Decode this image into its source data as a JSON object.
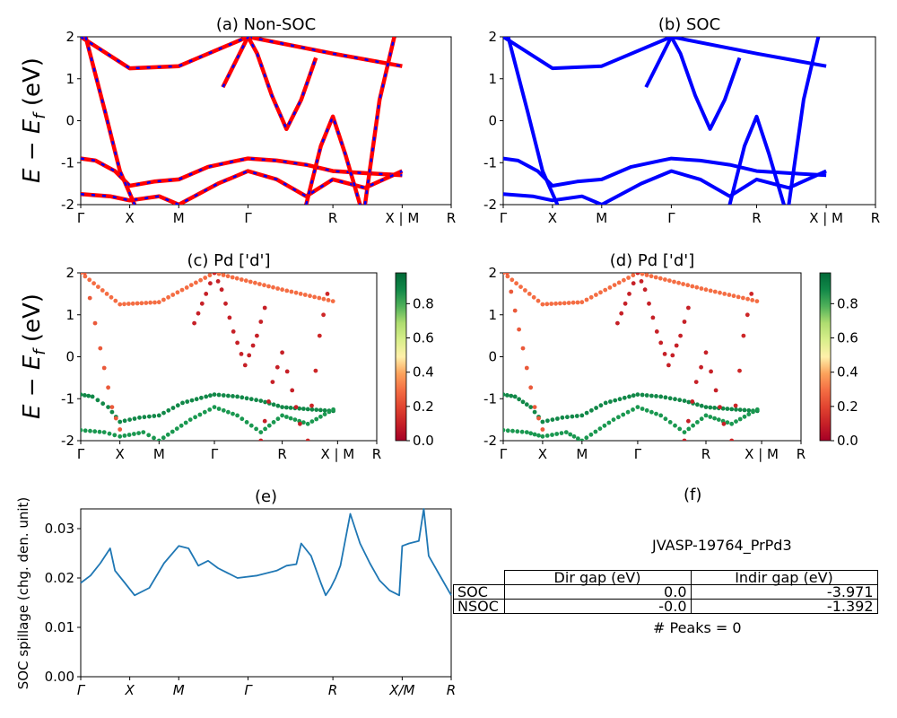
{
  "chart_data": [
    {
      "panel": "a",
      "type": "line",
      "title": "(a) Non-SOC",
      "ylabel": "E − E_f (eV)",
      "ylim": [
        -2,
        2
      ],
      "yticks": [
        -2,
        -1,
        0,
        1,
        2
      ],
      "kpath_labels": [
        "Γ",
        "X",
        "M",
        "Γ",
        "R",
        "X | M",
        "R"
      ],
      "kpath_positions": [
        0,
        0.5,
        1.0,
        1.707,
        2.573,
        3.28,
        3.78
      ],
      "series": [
        {
          "x": [
            0,
            0.5,
            1,
            1.707,
            2.573,
            3.28
          ],
          "y": [
            2.0,
            1.25,
            1.3,
            2.0,
            1.6,
            1.3
          ]
        },
        {
          "x": [
            0,
            0.15,
            0.35,
            0.5,
            0.75,
            1,
            1.3,
            1.6,
            1.707,
            2.0,
            2.3,
            2.573,
            2.9,
            3.28
          ],
          "y": [
            -0.9,
            -0.95,
            -1.2,
            -1.55,
            -1.45,
            -1.4,
            -1.1,
            -0.95,
            -0.9,
            -0.95,
            -1.05,
            -1.2,
            -1.25,
            -1.3
          ]
        },
        {
          "x": [
            0,
            0.3,
            0.5,
            0.8,
            1,
            1.4,
            1.707,
            2.0,
            2.3,
            2.573,
            2.9,
            3.28
          ],
          "y": [
            -1.75,
            -1.8,
            -1.9,
            -1.8,
            -2.0,
            -1.5,
            -1.2,
            -1.4,
            -1.8,
            -1.4,
            -1.6,
            -1.2
          ]
        },
        {
          "x": [
            0.05,
            0.25,
            0.4,
            0.55
          ],
          "y": [
            2.0,
            0.2,
            -1.2,
            -2.0
          ]
        },
        {
          "x": [
            1.45,
            1.6,
            1.707,
            1.8,
            1.95,
            2.1,
            2.25,
            2.4
          ],
          "y": [
            0.8,
            1.5,
            2.0,
            1.6,
            0.6,
            -0.2,
            0.5,
            1.5
          ]
        },
        {
          "x": [
            2.3,
            2.45,
            2.573,
            2.7,
            2.85
          ],
          "y": [
            -2.0,
            -0.6,
            0.1,
            -0.8,
            -2.0
          ]
        },
        {
          "x": [
            2.9,
            3.05,
            3.2
          ],
          "y": [
            -2.0,
            0.5,
            2.0
          ]
        }
      ]
    },
    {
      "panel": "b",
      "type": "line",
      "title": "(b) SOC",
      "ylim": [
        -2,
        2
      ],
      "yticks": [
        -2,
        -1,
        0,
        1,
        2
      ],
      "kpath_labels": [
        "Γ",
        "X",
        "M",
        "Γ",
        "R",
        "X | M",
        "R"
      ],
      "kpath_positions": [
        0,
        0.5,
        1.0,
        1.707,
        2.573,
        3.28,
        3.78
      ],
      "series": [
        {
          "x": [
            0,
            0.5,
            1,
            1.707,
            2.573,
            3.28
          ],
          "y": [
            2.0,
            1.25,
            1.3,
            2.0,
            1.6,
            1.3
          ]
        },
        {
          "x": [
            0,
            0.15,
            0.35,
            0.5,
            0.75,
            1,
            1.3,
            1.6,
            1.707,
            2.0,
            2.3,
            2.573,
            2.9,
            3.28
          ],
          "y": [
            -0.9,
            -0.95,
            -1.2,
            -1.55,
            -1.45,
            -1.4,
            -1.1,
            -0.95,
            -0.9,
            -0.95,
            -1.05,
            -1.2,
            -1.25,
            -1.3
          ]
        },
        {
          "x": [
            0,
            0.3,
            0.5,
            0.8,
            1,
            1.4,
            1.707,
            2.0,
            2.3,
            2.573,
            2.9,
            3.28
          ],
          "y": [
            -1.75,
            -1.8,
            -1.9,
            -1.8,
            -2.0,
            -1.5,
            -1.2,
            -1.4,
            -1.8,
            -1.4,
            -1.6,
            -1.2
          ]
        },
        {
          "x": [
            0.05,
            0.25,
            0.4,
            0.55
          ],
          "y": [
            2.0,
            0.2,
            -1.2,
            -2.0
          ]
        },
        {
          "x": [
            1.45,
            1.6,
            1.707,
            1.8,
            1.95,
            2.1,
            2.25,
            2.4
          ],
          "y": [
            0.8,
            1.5,
            2.0,
            1.6,
            0.6,
            -0.2,
            0.5,
            1.5
          ]
        },
        {
          "x": [
            2.3,
            2.45,
            2.573,
            2.7,
            2.85
          ],
          "y": [
            -2.0,
            -0.6,
            0.1,
            -0.8,
            -2.0
          ]
        },
        {
          "x": [
            2.9,
            3.05,
            3.2
          ],
          "y": [
            -2.0,
            0.5,
            2.0
          ]
        }
      ]
    },
    {
      "panel": "c",
      "type": "scatter",
      "title": "(c)  Pd ['d']",
      "ylabel": "E − E_f (eV)",
      "ylim": [
        -2,
        2
      ],
      "yticks": [
        -2,
        -1,
        0,
        1,
        2
      ],
      "colorbar_ticks": [
        0.0,
        0.2,
        0.4,
        0.6,
        0.8
      ],
      "kpath_labels": [
        "Γ",
        "X",
        "M",
        "Γ",
        "R",
        "X | M",
        "R"
      ],
      "kpath_positions": [
        0,
        0.5,
        1.0,
        1.707,
        2.573,
        3.28,
        3.78
      ],
      "bands": [
        {
          "x": [
            0,
            0.5,
            1,
            1.707,
            2.573,
            3.28
          ],
          "y": [
            2.0,
            1.25,
            1.3,
            2.0,
            1.6,
            1.3
          ],
          "w": 0.3
        },
        {
          "x": [
            0,
            0.15,
            0.35,
            0.5,
            0.75,
            1,
            1.3,
            1.6,
            1.707,
            2.0,
            2.3,
            2.573,
            2.9,
            3.28
          ],
          "y": [
            -0.9,
            -0.95,
            -1.2,
            -1.55,
            -1.45,
            -1.4,
            -1.1,
            -0.95,
            -0.9,
            -0.95,
            -1.05,
            -1.2,
            -1.25,
            -1.3
          ],
          "w": 0.9
        },
        {
          "x": [
            0,
            0.3,
            0.5,
            0.8,
            1,
            1.4,
            1.707,
            2.0,
            2.3,
            2.573,
            2.9,
            3.28
          ],
          "y": [
            -1.75,
            -1.8,
            -1.9,
            -1.8,
            -2.0,
            -1.5,
            -1.2,
            -1.4,
            -1.8,
            -1.4,
            -1.6,
            -1.2
          ],
          "w": 0.85
        },
        {
          "x": [
            0.05,
            0.25,
            0.4,
            0.55
          ],
          "y": [
            2.0,
            0.2,
            -1.2,
            -2.0
          ],
          "w": 0.25
        },
        {
          "x": [
            1.45,
            1.6,
            1.707,
            1.8,
            1.95,
            2.1,
            2.25,
            2.4
          ],
          "y": [
            0.8,
            1.5,
            2.0,
            1.6,
            0.6,
            -0.2,
            0.5,
            1.5
          ],
          "w": 0.1
        },
        {
          "x": [
            2.3,
            2.45,
            2.573,
            2.7,
            2.85
          ],
          "y": [
            -2.0,
            -0.6,
            0.1,
            -0.8,
            -2.0
          ],
          "w": 0.1
        },
        {
          "x": [
            2.9,
            3.05,
            3.2
          ],
          "y": [
            -2.0,
            0.5,
            2.0
          ],
          "w": 0.12
        }
      ]
    },
    {
      "panel": "d",
      "type": "scatter",
      "title": "(d) Pd ['d']",
      "ylim": [
        -2,
        2
      ],
      "yticks": [
        -2,
        -1,
        0,
        1,
        2
      ],
      "colorbar_ticks": [
        0.0,
        0.2,
        0.4,
        0.6,
        0.8
      ],
      "kpath_labels": [
        "Γ",
        "X",
        "M",
        "Γ",
        "R",
        "X | M",
        "R"
      ],
      "kpath_positions": [
        0,
        0.5,
        1.0,
        1.707,
        2.573,
        3.28,
        3.78
      ],
      "bands": [
        {
          "x": [
            0,
            0.5,
            1,
            1.707,
            2.573,
            3.28
          ],
          "y": [
            2.0,
            1.25,
            1.3,
            2.0,
            1.6,
            1.3
          ],
          "w": 0.3
        },
        {
          "x": [
            0,
            0.15,
            0.35,
            0.5,
            0.75,
            1,
            1.3,
            1.6,
            1.707,
            2.0,
            2.3,
            2.573,
            2.9,
            3.28
          ],
          "y": [
            -0.9,
            -0.95,
            -1.2,
            -1.55,
            -1.45,
            -1.4,
            -1.1,
            -0.95,
            -0.9,
            -0.95,
            -1.05,
            -1.2,
            -1.25,
            -1.3
          ],
          "w": 0.9
        },
        {
          "x": [
            0,
            0.3,
            0.5,
            0.8,
            1,
            1.4,
            1.707,
            2.0,
            2.3,
            2.573,
            2.9,
            3.28
          ],
          "y": [
            -1.75,
            -1.8,
            -1.9,
            -1.8,
            -2.0,
            -1.5,
            -1.2,
            -1.4,
            -1.8,
            -1.4,
            -1.6,
            -1.2
          ],
          "w": 0.85
        },
        {
          "x": [
            0.05,
            0.25,
            0.4,
            0.55
          ],
          "y": [
            2.0,
            0.2,
            -1.2,
            -2.0
          ],
          "w": 0.25
        },
        {
          "x": [
            1.45,
            1.6,
            1.707,
            1.8,
            1.95,
            2.1,
            2.25,
            2.4
          ],
          "y": [
            0.8,
            1.5,
            2.0,
            1.6,
            0.6,
            -0.2,
            0.5,
            1.5
          ],
          "w": 0.1
        },
        {
          "x": [
            2.3,
            2.45,
            2.573,
            2.7,
            2.85
          ],
          "y": [
            -2.0,
            -0.6,
            0.1,
            -0.8,
            -2.0
          ],
          "w": 0.1
        },
        {
          "x": [
            2.9,
            3.05,
            3.2
          ],
          "y": [
            -2.0,
            0.5,
            2.0
          ],
          "w": 0.12
        }
      ]
    },
    {
      "panel": "e",
      "type": "line",
      "title": "(e)",
      "ylabel": "SOC spillage (chg. den. unit)",
      "ylim": [
        0.0,
        0.034
      ],
      "yticks": [
        0.0,
        0.01,
        0.02,
        0.03
      ],
      "xlim": [
        0,
        3.78
      ],
      "kpath_labels": [
        "Γ",
        "X",
        "M",
        "Γ",
        "R",
        "X/M",
        "R"
      ],
      "kpath_positions": [
        0,
        0.5,
        1.0,
        1.707,
        2.573,
        3.28,
        3.78
      ],
      "x": [
        0,
        0.1,
        0.2,
        0.3,
        0.35,
        0.45,
        0.55,
        0.7,
        0.85,
        1.0,
        1.1,
        1.2,
        1.3,
        1.4,
        1.6,
        1.8,
        2.0,
        2.1,
        2.2,
        2.25,
        2.35,
        2.45,
        2.5,
        2.55,
        2.6,
        2.65,
        2.75,
        2.85,
        2.95,
        3.05,
        3.15,
        3.25,
        3.28,
        3.35,
        3.45,
        3.5,
        3.55,
        3.65,
        3.78
      ],
      "y": [
        0.019,
        0.0205,
        0.023,
        0.026,
        0.0215,
        0.019,
        0.0165,
        0.018,
        0.023,
        0.0265,
        0.026,
        0.0225,
        0.0235,
        0.022,
        0.02,
        0.0205,
        0.0215,
        0.0225,
        0.0228,
        0.027,
        0.0245,
        0.019,
        0.0165,
        0.018,
        0.02,
        0.0225,
        0.033,
        0.027,
        0.023,
        0.0195,
        0.0175,
        0.0165,
        0.0265,
        0.027,
        0.0275,
        0.034,
        0.0245,
        0.021,
        0.0165
      ]
    }
  ],
  "panel_f": {
    "title": "(f)",
    "material": "JVASP-19764_PrPd3",
    "table": {
      "headers": [
        "Dir gap (eV)",
        "Indir gap (eV)"
      ],
      "rows": [
        {
          "label": "SOC",
          "dir": "0.0",
          "indir": "-3.971"
        },
        {
          "label": "NSOC",
          "dir": "-0.0",
          "indir": "-1.392"
        }
      ]
    },
    "peaks": "# Peaks = 0"
  },
  "colors": {
    "band_red": "#ff0000",
    "band_blue": "#0000ff",
    "spillage": "#1f77b4"
  }
}
